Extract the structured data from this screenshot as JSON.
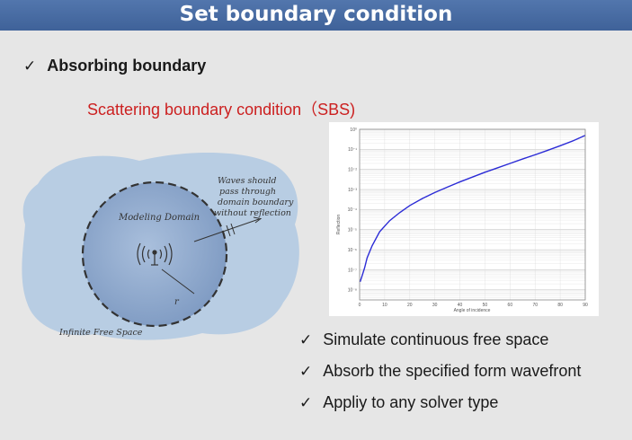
{
  "slide": {
    "title": "Set boundary condition",
    "main_bullet": "Absorbing boundary",
    "subtitle": "Scattering boundary condition（SBS)",
    "check_glyph": "✓"
  },
  "illustration": {
    "domain_label": "Modeling Domain",
    "wave_label_lines": [
      "Waves should",
      "pass through",
      "domain boundary",
      "without reflection"
    ],
    "space_label": "Infinite Free Space",
    "radius_label": "r",
    "icons": [
      "antenna-icon",
      "wave-arrow-icon"
    ]
  },
  "features": [
    "Simulate continuous free space",
    "Absorb the specified form wavefront",
    "Appliy to any solver type"
  ],
  "chart_data": {
    "type": "line",
    "xlabel": "Angle of incidence",
    "ylabel": "Reflection",
    "x_ticks": [
      0,
      10,
      20,
      30,
      40,
      50,
      60,
      70,
      80,
      90
    ],
    "y_ticks": [
      "10⁻⁸",
      "10⁻⁷",
      "10⁻⁶",
      "10⁻⁵",
      "10⁻⁴",
      "10⁻³",
      "10⁻²",
      "10⁻¹",
      "10⁰"
    ],
    "xlim": [
      0,
      90
    ],
    "ylim_exponent": [
      -8.5,
      0
    ],
    "grid": true,
    "line_color": "#2b2bd6",
    "series": [
      {
        "x": [
          0.2,
          1,
          2,
          3,
          5,
          8,
          12,
          16,
          20,
          25,
          30,
          35,
          40,
          45,
          50,
          55,
          60,
          65,
          70,
          75,
          80,
          85,
          90
        ],
        "log10_y": [
          -7.6,
          -7.3,
          -6.9,
          -6.4,
          -5.8,
          -5.1,
          -4.55,
          -4.15,
          -3.8,
          -3.45,
          -3.15,
          -2.88,
          -2.62,
          -2.38,
          -2.14,
          -1.92,
          -1.7,
          -1.48,
          -1.27,
          -1.05,
          -0.82,
          -0.58,
          -0.3
        ]
      }
    ]
  }
}
